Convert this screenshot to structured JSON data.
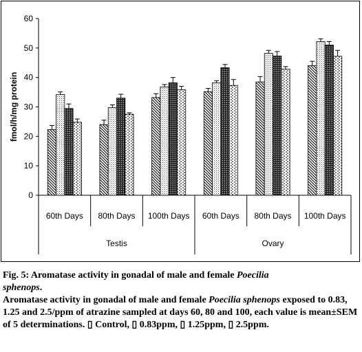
{
  "chart_data": {
    "type": "bar",
    "title": "",
    "ylabel": "fmol/h/mg protein",
    "xlabel": "",
    "ylim": [
      0,
      60
    ],
    "yticks": [
      "0",
      "10",
      "20",
      "30",
      "40",
      "50",
      "60"
    ],
    "grid": false,
    "legend": "none",
    "categories": [
      "60th Days",
      "80th Days",
      "100th Days",
      "60th Days",
      "80th Days",
      "100th Days"
    ],
    "groups": [
      {
        "label": "Testis",
        "categories": [
          0,
          1,
          2
        ]
      },
      {
        "label": "Ovary",
        "categories": [
          3,
          4,
          5
        ]
      }
    ],
    "series": [
      {
        "name": "Control",
        "pattern": "back-diagonal",
        "values": [
          22.3,
          24.0,
          33.2,
          35.2,
          38.5,
          44.0
        ],
        "errors": [
          1.4,
          1.5,
          1.3,
          1.1,
          1.8,
          1.5
        ]
      },
      {
        "name": "0.83ppm",
        "pattern": "fine-dots",
        "values": [
          34.2,
          29.8,
          36.8,
          38.2,
          48.2,
          52.2
        ],
        "errors": [
          0.9,
          0.9,
          0.8,
          0.7,
          1.0,
          0.9
        ]
      },
      {
        "name": "1.25ppm",
        "pattern": "dark-crosshatch",
        "values": [
          29.5,
          33.0,
          38.2,
          43.3,
          47.3,
          51.0
        ],
        "errors": [
          1.5,
          1.3,
          1.8,
          1.1,
          1.5,
          1.2
        ]
      },
      {
        "name": "2.5ppm",
        "pattern": "dashes",
        "values": [
          24.8,
          27.5,
          35.8,
          37.3,
          42.8,
          47.2
        ],
        "errors": [
          1.1,
          0.5,
          1.2,
          2.0,
          0.9,
          2.0
        ]
      }
    ]
  },
  "caption": {
    "line1_prefix": "Fig. 5: Aromatase activity in gonadal of male and female ",
    "species": "Poecilia",
    "line2_species": "sphenops",
    "line2_suffix": ".",
    "para_prefix": "Aromatase activity in gonadal of male and female ",
    "para_species": "Poecilia sphenops",
    "para_body": "exposed to 0.83, 1.25 and 2.5/ppm of atrazine sampled at days 60, 80 and 100, each value is mean±SEM of 5 determinations.",
    "legend_glyph": "▯",
    "legend_items": [
      "Control,",
      "0.83ppm,",
      "1.25ppm,",
      "2.5ppm."
    ]
  }
}
